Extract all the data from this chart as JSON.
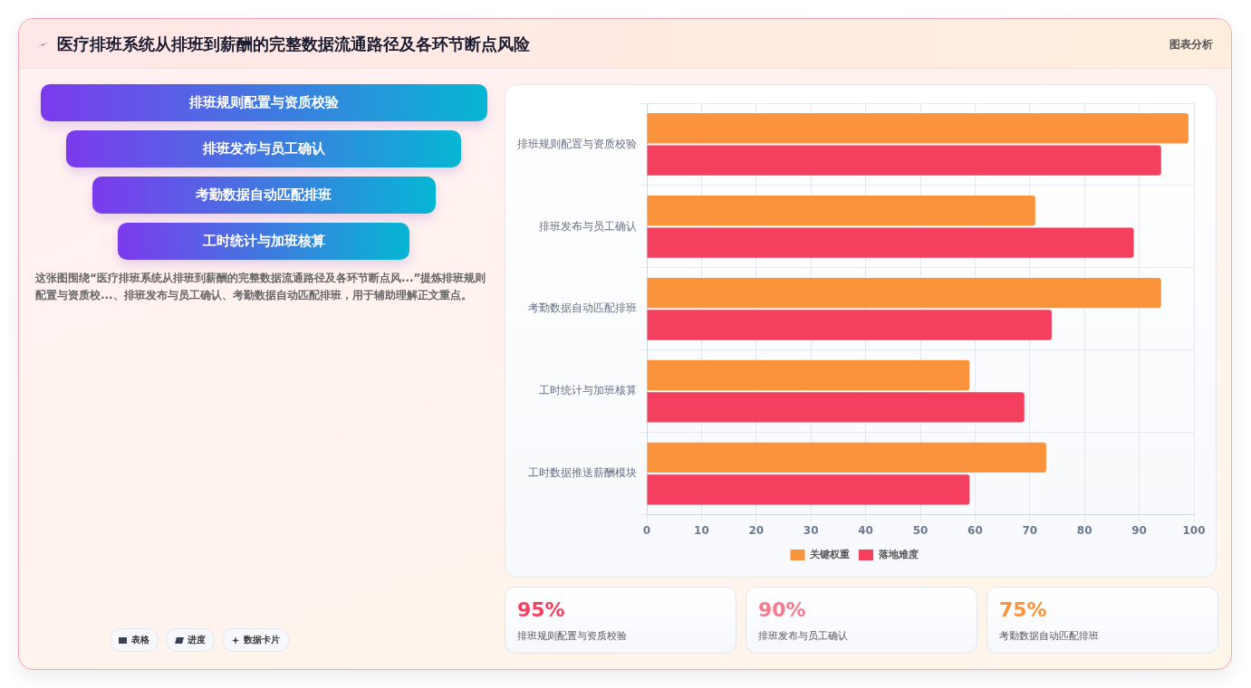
{
  "chart_data": [
    {
      "type": "other",
      "title": "医疗排班系统从排班到薪酬的完整数据流通路径及各环节断点风险",
      "categories": [
        "排班规则配置与资质校验",
        "排班发布与员工确认",
        "考勤数据自动匹配排班",
        "工时统计与加班核算"
      ],
      "annotations": [
        "这张图围绕“医疗排班系统从排班到薪酬的完整数据流通路径及各环节断点风...”提炼排班规则配置与资质校...、排班发布与员工确认、考勤数据自动匹配排班，用于辅助理解正文重点。",
        "图表分析",
        "表格",
        "进度",
        "数据卡片"
      ]
    },
    {
      "type": "bar",
      "orientation": "horizontal",
      "categories": [
        "排班规则配置与资质校验",
        "排班发布与员工确认",
        "考勤数据自动匹配排班",
        "工时统计与加班核算",
        "工时数据推送薪酬模块"
      ],
      "series": [
        {
          "name": "关键权重",
          "color": "#fb923c",
          "values": [
            99,
            71,
            94,
            59,
            73
          ]
        },
        {
          "name": "落地难度",
          "color": "#f43f5e",
          "values": [
            94,
            89,
            74,
            69,
            59
          ]
        }
      ],
      "xlim": [
        0,
        100
      ],
      "xticks": [
        0,
        10,
        20,
        30,
        40,
        50,
        60,
        70,
        80,
        90,
        100
      ],
      "grid": true,
      "legend": "bottom"
    },
    {
      "type": "other",
      "categories": [
        "排班规则配置与资质校验",
        "排班发布与员工确认",
        "考勤数据自动匹配排班"
      ],
      "annotations": [
        "95%",
        "90%",
        "75%"
      ]
    }
  ]
}
